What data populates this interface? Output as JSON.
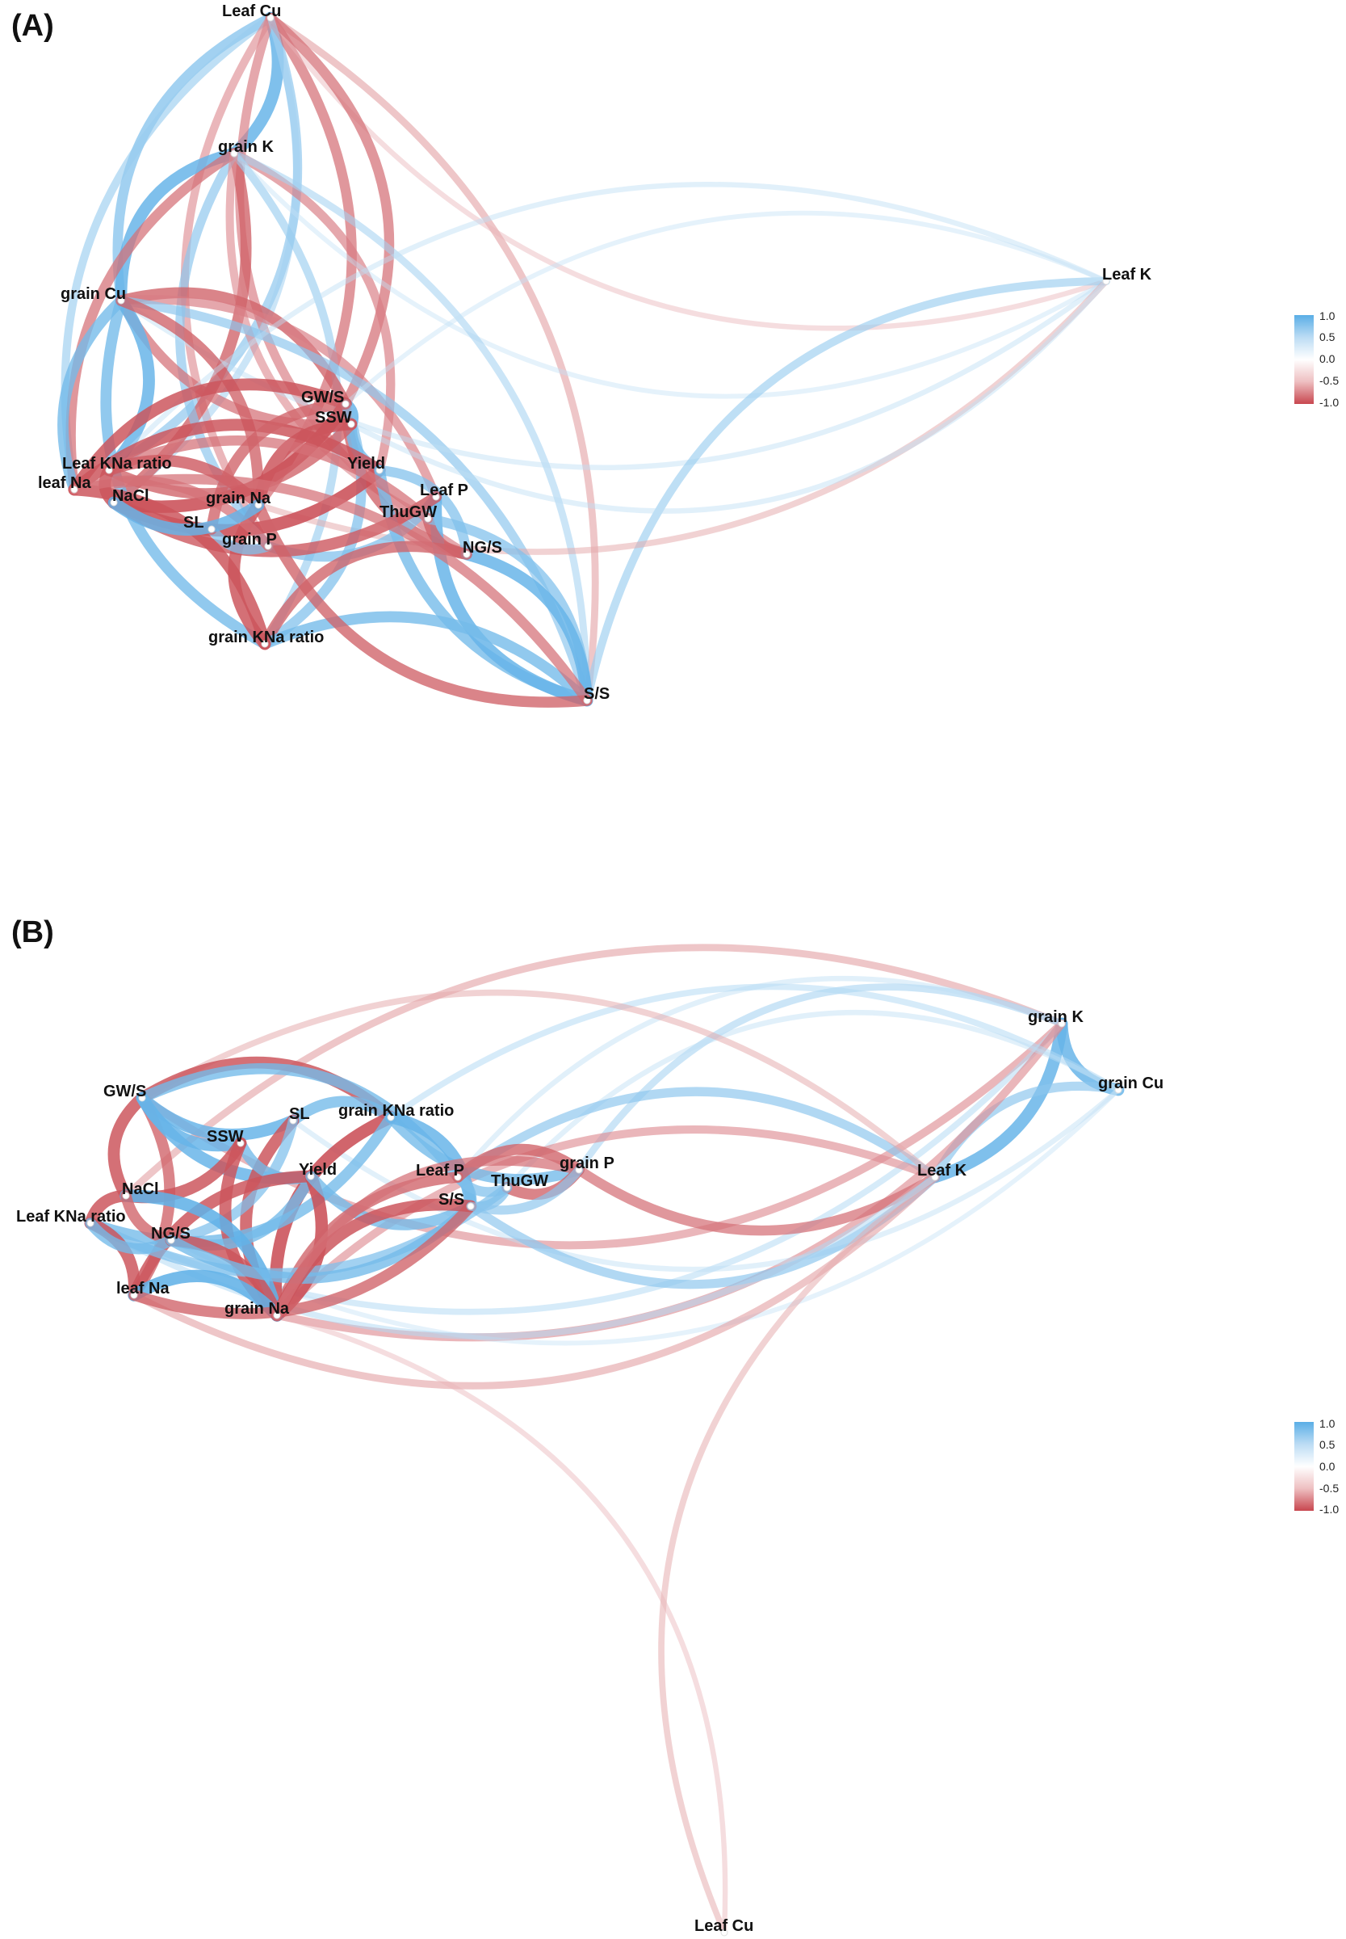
{
  "panels": [
    {
      "label": "(A)",
      "nodes": [
        {
          "id": "leaf_cu",
          "label": "Leaf Cu"
        },
        {
          "id": "grain_k",
          "label": "grain K"
        },
        {
          "id": "grain_cu",
          "label": "grain Cu"
        },
        {
          "id": "leaf_k",
          "label": "Leaf K"
        },
        {
          "id": "gws",
          "label": "GW/S"
        },
        {
          "id": "ssw",
          "label": "SSW"
        },
        {
          "id": "leaf_kna",
          "label": "Leaf KNa ratio"
        },
        {
          "id": "yield",
          "label": "Yield"
        },
        {
          "id": "leaf_na",
          "label": "leaf Na"
        },
        {
          "id": "nacl",
          "label": "NaCl"
        },
        {
          "id": "grain_na",
          "label": "grain Na"
        },
        {
          "id": "leaf_p",
          "label": "Leaf P"
        },
        {
          "id": "thugw",
          "label": "ThuGW"
        },
        {
          "id": "sl",
          "label": "SL"
        },
        {
          "id": "grain_p",
          "label": "grain P"
        },
        {
          "id": "ngs",
          "label": "NG/S"
        },
        {
          "id": "grain_kna",
          "label": "grain KNa ratio"
        },
        {
          "id": "ss",
          "label": "S/S"
        }
      ],
      "legend": {
        "ticks": [
          "1.0",
          "0.5",
          "0.0",
          "-0.5",
          "-1.0"
        ]
      }
    },
    {
      "label": "(B)",
      "nodes": [
        {
          "id": "grain_k",
          "label": "grain K"
        },
        {
          "id": "grain_cu",
          "label": "grain Cu"
        },
        {
          "id": "gws",
          "label": "GW/S"
        },
        {
          "id": "sl",
          "label": "SL"
        },
        {
          "id": "grain_kna",
          "label": "grain KNa ratio"
        },
        {
          "id": "ssw",
          "label": "SSW"
        },
        {
          "id": "leaf_p",
          "label": "Leaf P"
        },
        {
          "id": "grain_p",
          "label": "grain P"
        },
        {
          "id": "yield",
          "label": "Yield"
        },
        {
          "id": "leaf_k",
          "label": "Leaf K"
        },
        {
          "id": "nacl",
          "label": "NaCl"
        },
        {
          "id": "thugw",
          "label": "ThuGW"
        },
        {
          "id": "leaf_kna",
          "label": "Leaf KNa ratio"
        },
        {
          "id": "ss",
          "label": "S/S"
        },
        {
          "id": "ngs",
          "label": "NG/S"
        },
        {
          "id": "leaf_na",
          "label": "leaf Na"
        },
        {
          "id": "grain_na",
          "label": "grain Na"
        },
        {
          "id": "leaf_cu",
          "label": "Leaf Cu"
        }
      ],
      "legend": {
        "ticks": [
          "1.0",
          "0.5",
          "0.0",
          "-0.5",
          "-1.0"
        ]
      }
    }
  ],
  "colors": {
    "positive": "#5aaee6",
    "neutral": "#ffffff",
    "negative": "#c8474f"
  },
  "edges": [
    [
      0,
      "leaf_cu",
      "grain_k",
      0.9
    ],
    [
      0,
      "leaf_cu",
      "grain_cu",
      0.7
    ],
    [
      0,
      "leaf_cu",
      "leaf_kna",
      0.6
    ],
    [
      0,
      "leaf_cu",
      "leaf_na",
      0.5
    ],
    [
      0,
      "leaf_cu",
      "grain_na",
      -0.7
    ],
    [
      0,
      "leaf_cu",
      "ngs",
      -0.6
    ],
    [
      0,
      "leaf_cu",
      "ss",
      -0.4
    ],
    [
      0,
      "leaf_cu",
      "leaf_k",
      -0.2
    ],
    [
      0,
      "leaf_cu",
      "gws",
      -0.7
    ],
    [
      0,
      "leaf_cu",
      "grain_p",
      -0.5
    ],
    [
      0,
      "leaf_cu",
      "nacl",
      0.4
    ],
    [
      0,
      "grain_k",
      "grain_cu",
      0.9
    ],
    [
      0,
      "grain_k",
      "nacl",
      -0.8
    ],
    [
      0,
      "grain_k",
      "grain_p",
      0.6
    ],
    [
      0,
      "grain_k",
      "yield",
      -0.6
    ],
    [
      0,
      "grain_k",
      "leaf_na",
      -0.7
    ],
    [
      0,
      "grain_k",
      "grain_kna",
      0.5
    ],
    [
      0,
      "grain_k",
      "leaf_k",
      0.15
    ],
    [
      0,
      "grain_k",
      "ss",
      0.4
    ],
    [
      0,
      "grain_k",
      "thugw",
      -0.5
    ],
    [
      0,
      "grain_cu",
      "gws",
      -0.8
    ],
    [
      0,
      "grain_cu",
      "ssw",
      -0.7
    ],
    [
      0,
      "grain_cu",
      "leaf_p",
      -0.6
    ],
    [
      0,
      "grain_cu",
      "grain_kna",
      0.8
    ],
    [
      0,
      "grain_cu",
      "ss",
      0.6
    ],
    [
      0,
      "grain_cu",
      "leaf_k",
      0.2
    ],
    [
      0,
      "grain_cu",
      "leaf_kna",
      0.9
    ],
    [
      0,
      "grain_cu",
      "leaf_na",
      0.8
    ],
    [
      0,
      "grain_cu",
      "grain_na",
      -0.8
    ],
    [
      0,
      "leaf_k",
      "ss",
      0.5
    ],
    [
      0,
      "leaf_k",
      "grain_na",
      -0.3
    ],
    [
      0,
      "leaf_k",
      "leaf_kna",
      0.2
    ],
    [
      0,
      "leaf_k",
      "ssw",
      0.2
    ],
    [
      0,
      "leaf_k",
      "gws",
      0.15
    ],
    [
      0,
      "gws",
      "ssw",
      0.9
    ],
    [
      0,
      "gws",
      "leaf_na",
      -0.9
    ],
    [
      0,
      "gws",
      "nacl",
      -0.95
    ],
    [
      0,
      "gws",
      "ngs",
      -0.8
    ],
    [
      0,
      "gws",
      "grain_kna",
      0.7
    ],
    [
      0,
      "ssw",
      "yield",
      0.8
    ],
    [
      0,
      "ssw",
      "leaf_kna",
      -0.8
    ],
    [
      0,
      "ssw",
      "grain_na",
      -0.9
    ],
    [
      0,
      "yield",
      "nacl",
      -0.95
    ],
    [
      0,
      "yield",
      "leaf_na",
      -0.9
    ],
    [
      0,
      "yield",
      "ngs",
      0.7
    ],
    [
      0,
      "yield",
      "ss",
      0.8
    ],
    [
      0,
      "leaf_p",
      "grain_p",
      0.7
    ],
    [
      0,
      "leaf_p",
      "ss",
      0.9
    ],
    [
      0,
      "leaf_p",
      "nacl",
      -0.85
    ],
    [
      0,
      "thugw",
      "ngs",
      -0.8
    ],
    [
      0,
      "thugw",
      "ss",
      0.7
    ],
    [
      0,
      "thugw",
      "leaf_kna",
      -0.7
    ],
    [
      0,
      "ngs",
      "ss",
      0.9
    ],
    [
      0,
      "ngs",
      "grain_kna",
      -0.8
    ],
    [
      0,
      "grain_kna",
      "ss",
      0.8
    ],
    [
      0,
      "grain_kna",
      "leaf_na",
      -0.9
    ],
    [
      0,
      "grain_kna",
      "grain_na",
      -0.9
    ],
    [
      0,
      "ss",
      "leaf_na",
      -0.7
    ],
    [
      0,
      "ss",
      "grain_na",
      -0.8
    ],
    [
      0,
      "leaf_kna",
      "nacl",
      -0.9
    ],
    [
      0,
      "leaf_kna",
      "grain_na",
      -0.85
    ],
    [
      0,
      "sl",
      "grain_p",
      0.7
    ],
    [
      0,
      "sl",
      "gws",
      -0.8
    ],
    [
      0,
      "grain_p",
      "leaf_na",
      -0.7
    ],
    [
      0,
      "grain_na",
      "nacl",
      0.9
    ],
    [
      1,
      "grain_k",
      "grain_cu",
      0.9
    ],
    [
      1,
      "grain_k",
      "leaf_k",
      0.9
    ],
    [
      1,
      "grain_cu",
      "leaf_k",
      0.6
    ],
    [
      1,
      "grain_k",
      "gws",
      -0.5
    ],
    [
      1,
      "grain_k",
      "nacl",
      -0.4
    ],
    [
      1,
      "grain_k",
      "leaf_kna",
      0.3
    ],
    [
      1,
      "grain_k",
      "grain_p",
      0.4
    ],
    [
      1,
      "grain_k",
      "grain_na",
      -0.5
    ],
    [
      1,
      "grain_k",
      "leaf_p",
      0.2
    ],
    [
      1,
      "grain_cu",
      "sl",
      0.2
    ],
    [
      1,
      "grain_cu",
      "grain_kna",
      0.3
    ],
    [
      1,
      "grain_cu",
      "ngs",
      0.15
    ],
    [
      1,
      "grain_cu",
      "thugw",
      0.2
    ],
    [
      1,
      "leaf_k",
      "grain_p",
      -0.7
    ],
    [
      1,
      "leaf_k",
      "leaf_p",
      0.6
    ],
    [
      1,
      "leaf_k",
      "ss",
      0.6
    ],
    [
      1,
      "leaf_k",
      "grain_na",
      -0.5
    ],
    [
      1,
      "leaf_k",
      "leaf_na",
      -0.4
    ],
    [
      1,
      "leaf_k",
      "leaf_cu",
      -0.3
    ],
    [
      1,
      "leaf_k",
      "leaf_kna",
      0.3
    ],
    [
      1,
      "leaf_k",
      "gws",
      -0.3
    ],
    [
      1,
      "grain_na",
      "leaf_cu",
      -0.2
    ],
    [
      1,
      "gws",
      "sl",
      0.9
    ],
    [
      1,
      "gws",
      "grain_kna",
      -0.9
    ],
    [
      1,
      "gws",
      "nacl",
      -0.9
    ],
    [
      1,
      "gws",
      "leaf_na",
      -0.8
    ],
    [
      1,
      "gws",
      "ssw",
      0.9
    ],
    [
      1,
      "gws",
      "leaf_p",
      0.8
    ],
    [
      1,
      "gws",
      "yield",
      0.9
    ],
    [
      1,
      "sl",
      "grain_kna",
      0.8
    ],
    [
      1,
      "sl",
      "grain_na",
      -0.9
    ],
    [
      1,
      "sl",
      "ngs",
      0.7
    ],
    [
      1,
      "grain_kna",
      "grain_na",
      -0.95
    ],
    [
      1,
      "grain_kna",
      "leaf_kna",
      0.8
    ],
    [
      1,
      "grain_kna",
      "grain_p",
      0.8
    ],
    [
      1,
      "grain_kna",
      "ss",
      0.9
    ],
    [
      1,
      "ssw",
      "yield",
      0.8
    ],
    [
      1,
      "ssw",
      "nacl",
      -0.9
    ],
    [
      1,
      "ssw",
      "grain_na",
      -0.9
    ],
    [
      1,
      "yield",
      "ngs",
      0.8
    ],
    [
      1,
      "yield",
      "leaf_na",
      -0.9
    ],
    [
      1,
      "yield",
      "grain_na",
      -0.95
    ],
    [
      1,
      "yield",
      "ss",
      0.8
    ],
    [
      1,
      "leaf_p",
      "ss",
      0.8
    ],
    [
      1,
      "leaf_p",
      "thugw",
      0.7
    ],
    [
      1,
      "leaf_p",
      "grain_p",
      -0.8
    ],
    [
      1,
      "leaf_p",
      "grain_na",
      -0.8
    ],
    [
      1,
      "thugw",
      "ss",
      0.7
    ],
    [
      1,
      "thugw",
      "grain_p",
      -0.8
    ],
    [
      1,
      "thugw",
      "leaf_kna",
      0.7
    ],
    [
      1,
      "nacl",
      "leaf_kna",
      -0.9
    ],
    [
      1,
      "nacl",
      "grain_na",
      0.95
    ],
    [
      1,
      "nacl",
      "ngs",
      -0.8
    ],
    [
      1,
      "leaf_kna",
      "leaf_na",
      -0.9
    ],
    [
      1,
      "leaf_kna",
      "ngs",
      0.8
    ],
    [
      1,
      "ngs",
      "grain_na",
      -0.9
    ],
    [
      1,
      "ngs",
      "ss",
      0.8
    ],
    [
      1,
      "leaf_na",
      "grain_na",
      0.95
    ],
    [
      1,
      "leaf_na",
      "ss",
      -0.8
    ],
    [
      1,
      "grain_na",
      "ss",
      -0.9
    ],
    [
      1,
      "grain_p",
      "grain_na",
      -0.7
    ],
    [
      1,
      "grain_p",
      "ss",
      0.6
    ]
  ]
}
